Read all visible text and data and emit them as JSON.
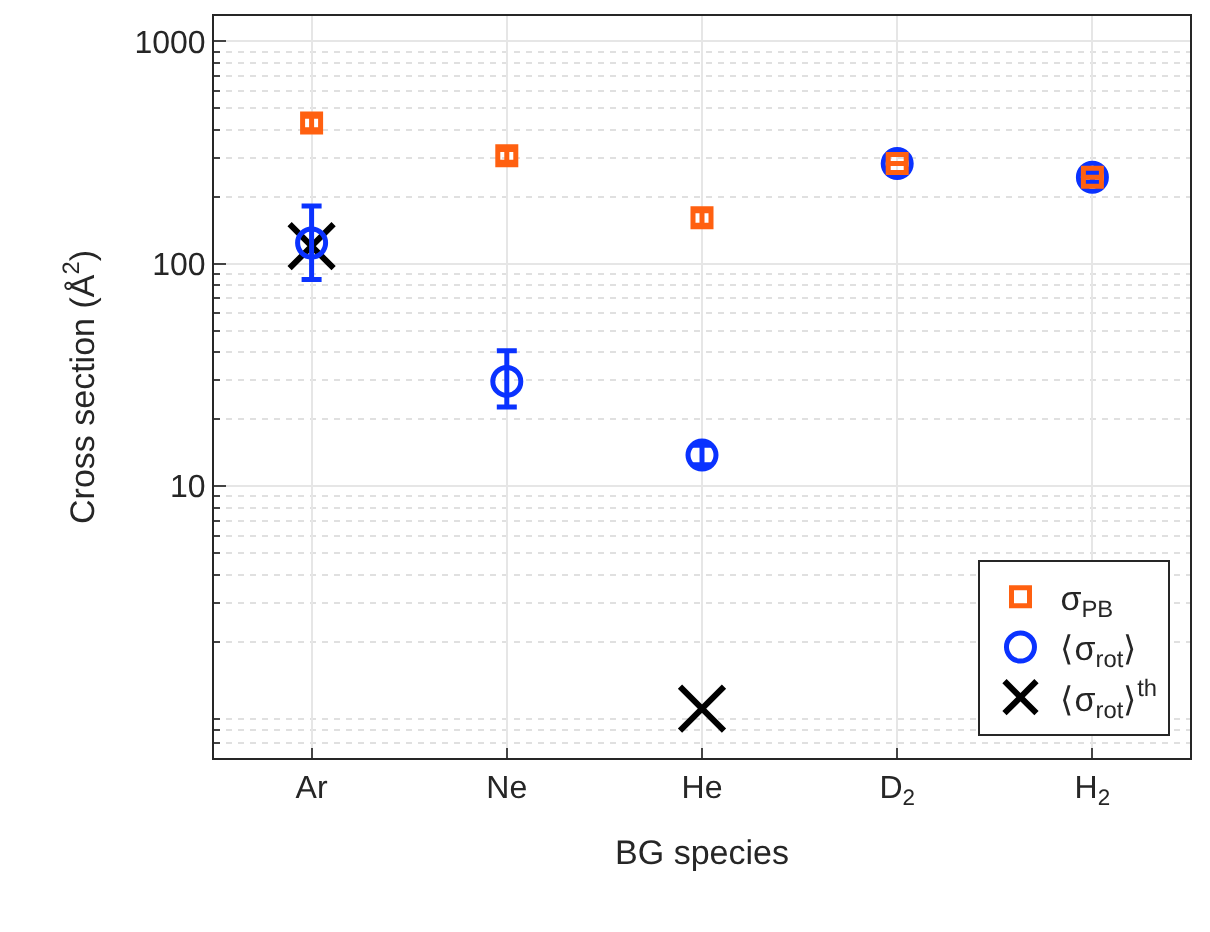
{
  "chart_data": {
    "type": "scatter",
    "xlabel": "BG species",
    "ylabel": "Cross section (Å$^{2}$)",
    "categories": [
      "Ar",
      "Ne",
      "He",
      "D$_{2}$",
      "H$_{2}$"
    ],
    "series": [
      {
        "name": "σ$_{PB}$",
        "color": "#ff6010",
        "marker": "square",
        "values": [
          430,
          306,
          161,
          282,
          245
        ],
        "errors": [
          30,
          20,
          12,
          null,
          null
        ]
      },
      {
        "name": "⟨σ$_{rot}$⟩",
        "color": "#0a32ff",
        "marker": "circle",
        "values": [
          124,
          29.6,
          13.8,
          282,
          245
        ],
        "errors": [
          [
            85,
            182
          ],
          [
            22.7,
            40.6
          ],
          [
            12.5,
            15.3
          ],
          null,
          12
        ]
      },
      {
        "name": "⟨σ$_{rot}$⟩$^{th}$",
        "color": "#000000",
        "marker": "cross",
        "values": [
          120,
          null,
          1,
          null,
          null
        ]
      }
    ],
    "log": "y",
    "ylim": [
      0.6,
      1300
    ],
    "yticks": [
      10,
      100,
      1000
    ],
    "grid": true,
    "legend": "bottom right"
  }
}
